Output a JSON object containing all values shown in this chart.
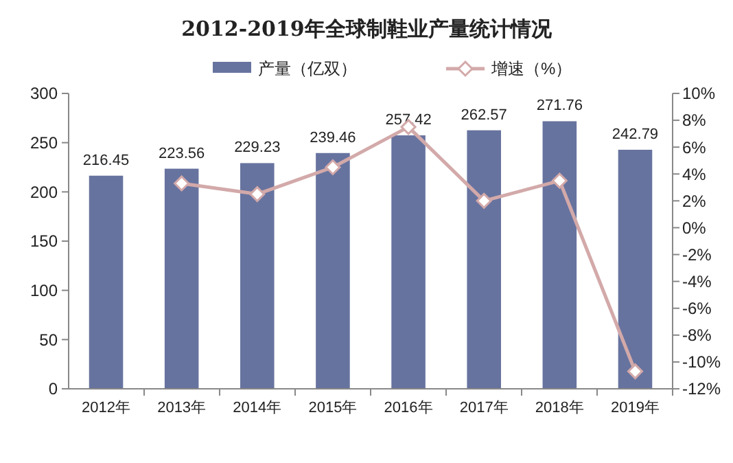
{
  "chart_data": {
    "type": "bar",
    "title": "2012-2019年全球制鞋业产量统计情况",
    "categories": [
      "2012年",
      "2013年",
      "2014年",
      "2015年",
      "2016年",
      "2017年",
      "2018年",
      "2019年"
    ],
    "series": [
      {
        "name": "产量（亿双）",
        "color": "#67739f",
        "values": [
          216.45,
          223.56,
          229.23,
          239.46,
          257.42,
          262.57,
          271.76,
          242.79
        ],
        "value_labels": [
          "216.45",
          "223.56",
          "229.23",
          "239.46",
          "257.42",
          "262.57",
          "271.76",
          "242.79"
        ]
      },
      {
        "name": "增速（%）",
        "type": "line",
        "axis": "y2",
        "color": "#d3a9a9",
        "marker": "diamond",
        "values": [
          null,
          3.3,
          2.5,
          4.5,
          7.5,
          2.0,
          3.5,
          -10.7
        ]
      }
    ],
    "ylim": [
      0,
      300
    ],
    "yticks": [
      0,
      50,
      100,
      150,
      200,
      250,
      300
    ],
    "y2lim": [
      -12,
      10
    ],
    "y2ticks": [
      {
        "value": -12,
        "label": "-12%"
      },
      {
        "value": -10,
        "label": "-10%"
      },
      {
        "value": -8,
        "label": "-8%"
      },
      {
        "value": -6,
        "label": "-6%"
      },
      {
        "value": -4,
        "label": "-4%"
      },
      {
        "value": -2,
        "label": "-2%"
      },
      {
        "value": 0,
        "label": "0%"
      },
      {
        "value": 2,
        "label": "2%"
      },
      {
        "value": 4,
        "label": "4%"
      },
      {
        "value": 6,
        "label": "6%"
      },
      {
        "value": 8,
        "label": "8%"
      },
      {
        "value": 10,
        "label": "10%"
      }
    ],
    "grid": false,
    "legend": "top"
  }
}
